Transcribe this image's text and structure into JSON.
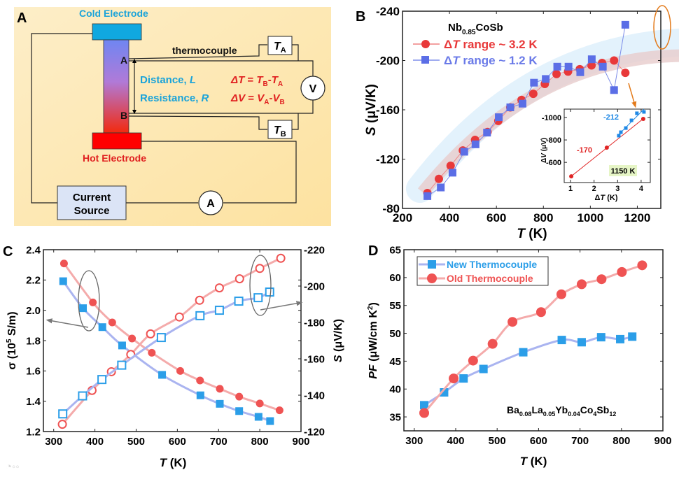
{
  "panel_labels": {
    "a": "A",
    "b": "B",
    "c": "C",
    "d": "D"
  },
  "diagram": {
    "cold_electrode": "Cold Electrode",
    "hot_electrode": "Hot Electrode",
    "thermocouple": "thermocouple",
    "point_a": "A",
    "point_b": "B",
    "distance": "Distance, ",
    "distance_var": "L",
    "resistance": "Resistance, ",
    "resistance_var": "R",
    "delta_t_eq": {
      "lhs": "ΔT",
      "eq": " = ",
      "t": "T",
      "sub_b": "B",
      "minus": "-",
      "sub_a": "A"
    },
    "delta_v_eq": {
      "lhs": "ΔV",
      "eq": " = ",
      "v": "V",
      "sub_a": "A",
      "minus": "-",
      "sub_b": "B"
    },
    "ta": {
      "t": "T",
      "sub": "A"
    },
    "tb": {
      "t": "T",
      "sub": "B"
    },
    "voltmeter": "V",
    "ammeter": "A",
    "current_source": {
      "line1": "Current",
      "line2": "Source"
    },
    "colors": {
      "background": "#fde9b8",
      "cold": "#10a8e0",
      "hot": "#ee1111",
      "label_blue": "#1aa3d9",
      "label_red": "#e02020"
    }
  },
  "chart_data": [
    {
      "id": "B",
      "type": "line",
      "title": {
        "base": "Nb",
        "sub": "0.85",
        "rest": "CoSb"
      },
      "xlabel": {
        "var": "T",
        "unit": " (K)"
      },
      "ylabel": {
        "var": "S",
        "unit": " (μV/K)"
      },
      "xlim": [
        200,
        1300
      ],
      "ylim": [
        -240,
        -80
      ],
      "xticks": [
        200,
        400,
        600,
        800,
        1000,
        1200
      ],
      "yticks": [
        -240,
        -200,
        -160,
        -120,
        -80
      ],
      "legend_placement": "top-left",
      "series": [
        {
          "name": "ΔT range ~ 3.2 K",
          "legend": {
            "delta": "Δ",
            "t": "T",
            "rest": " range ~ 3.2 K"
          },
          "marker": "circle",
          "color": "#e8393a",
          "x": [
            306,
            355,
            405,
            457,
            509,
            562,
            608,
            659,
            707,
            757,
            806,
            856,
            905,
            955,
            1005,
            1050,
            1101,
            1149
          ],
          "y": [
            -92.5,
            -104,
            -114.6,
            -127,
            -135.6,
            -142,
            -151,
            -162,
            -168,
            -173,
            -181,
            -189,
            -191,
            -193,
            -196,
            -198,
            -200,
            -190
          ]
        },
        {
          "name": "ΔT range ~ 1.2 K",
          "legend": {
            "delta": "Δ",
            "t": "T",
            "rest": " range ~ 1.2 K"
          },
          "marker": "square",
          "color": "#5b6ee6",
          "x": [
            306,
            363,
            413,
            463,
            511,
            560,
            610,
            659,
            711,
            760,
            810,
            859,
            907,
            957,
            1006,
            1053,
            1101,
            1149
          ],
          "y": [
            -90,
            -97,
            -109,
            -126,
            -132,
            -141.5,
            -154,
            -162,
            -165,
            -182,
            -185,
            -195,
            -195,
            -190.5,
            -201,
            -195,
            -176,
            -229
          ]
        }
      ],
      "inset": {
        "type": "scatter",
        "xlabel": {
          "delta": "Δ",
          "var": "T",
          "unit": " (K)"
        },
        "ylabel": {
          "delta": "Δ",
          "var": "V",
          "unit": " (μV)"
        },
        "xlim": [
          0.73,
          4.39
        ],
        "ylim": [
          -1075,
          -420
        ],
        "xticks": [
          1,
          2,
          3,
          4
        ],
        "yticks": [
          -1000,
          -800,
          -600
        ],
        "annotation": "1150 K",
        "series": [
          {
            "name": "ΔT range ~ 3.2 K",
            "label": "-170",
            "marker": "circle",
            "color": "#e02424",
            "x": [
              1.03,
              2.54,
              4.09
            ],
            "y": [
              -475,
              -731,
              -988
            ]
          },
          {
            "name": "ΔT range ~ 1.2 K",
            "label": "-212",
            "marker": "square",
            "color": "#1e88e5",
            "x": [
              3.05,
              3.14,
              3.35,
              3.59,
              3.82,
              4.12
            ],
            "y": [
              -838,
              -869,
              -906,
              -975,
              -1038,
              -1050
            ]
          }
        ]
      }
    },
    {
      "id": "C",
      "type": "line",
      "xlabel": {
        "var": "T",
        "unit": " (K)"
      },
      "ylabel_left": {
        "var": "σ",
        "unit": " (10",
        "sup": "5",
        "unit2": " S/m)"
      },
      "ylabel_right": {
        "var": "S",
        "unit": " (μV/K)"
      },
      "xlim": [
        275,
        900
      ],
      "ylim_left": [
        2.4,
        1.2
      ],
      "ylim_right": [
        -220,
        -120
      ],
      "xticks": [
        300,
        400,
        500,
        600,
        700,
        800,
        900
      ],
      "yticks_left": [
        "2.4",
        "2.2",
        "2.0",
        "1.8",
        "1.6",
        "1.4",
        "1.2"
      ],
      "yticks_right": [
        -220,
        -200,
        -180,
        -160,
        -140,
        -120
      ],
      "series": [
        {
          "name": "σ old thermocouple",
          "axis": "left",
          "marker": "circle",
          "filled": true,
          "color": "#ef5353",
          "line": "#f4abab",
          "x": [
            325,
            395,
            442,
            490,
            538,
            607,
            655,
            703,
            750,
            800,
            848
          ],
          "y": [
            2.309,
            2.052,
            1.92,
            1.814,
            1.72,
            1.6,
            1.537,
            1.482,
            1.43,
            1.385,
            1.34
          ]
        },
        {
          "name": "σ new thermocouple",
          "axis": "left",
          "marker": "square",
          "filled": true,
          "color": "#2b9ee8",
          "line": "#aab4f0",
          "x": [
            323,
            371,
            418,
            466,
            563,
            656,
            703,
            750,
            797,
            825
          ],
          "y": [
            2.192,
            2.014,
            1.889,
            1.768,
            1.574,
            1.439,
            1.383,
            1.335,
            1.297,
            1.269
          ]
        },
        {
          "name": "S old thermocouple",
          "axis": "right",
          "marker": "circle",
          "filled": false,
          "color": "#ef5353",
          "line": "#f4abab",
          "x": [
            321,
            393,
            440,
            487,
            535,
            605,
            654,
            702,
            751,
            800,
            851
          ],
          "y": [
            -124,
            -142.6,
            -152.9,
            -162.4,
            -173.7,
            -183,
            -192.2,
            -199,
            -204,
            -209.7,
            -215.3
          ]
        },
        {
          "name": "S new thermocouple",
          "axis": "right",
          "marker": "square",
          "filled": false,
          "color": "#2b9ee8",
          "line": "#aab4f0",
          "x": [
            322,
            370,
            417,
            465,
            561,
            655,
            702,
            749,
            796,
            824
          ],
          "y": [
            -129.7,
            -139.6,
            -148.6,
            -156.5,
            -171.7,
            -183.7,
            -186.7,
            -191.7,
            -193.6,
            -196.7
          ]
        }
      ]
    },
    {
      "id": "D",
      "type": "line",
      "xlabel": {
        "var": "T",
        "unit": " (K)"
      },
      "ylabel": {
        "var": "PF",
        "unit": " (μW/cm K",
        "sup": "2",
        "unit2": ")"
      },
      "xlim": [
        275,
        900
      ],
      "ylim": [
        65,
        32.5
      ],
      "xticks": [
        300,
        400,
        500,
        600,
        700,
        800,
        900
      ],
      "yticks": [
        65,
        60,
        55,
        50,
        45,
        40,
        35
      ],
      "legend_placement": "top-left",
      "annotation": [
        {
          "t": "Ba"
        },
        {
          "s": "0.08"
        },
        {
          "t": "La"
        },
        {
          "s": "0.05"
        },
        {
          "t": "Yb"
        },
        {
          "s": "0.04"
        },
        {
          "t": "Co"
        },
        {
          "s": "4"
        },
        {
          "t": "Sb"
        },
        {
          "s": "12"
        }
      ],
      "series": [
        {
          "name": "New Thermocouple",
          "marker": "square",
          "color": "#2b9ee8",
          "line": "#aab4f0",
          "x": [
            324,
            372,
            419,
            467,
            563,
            656,
            704,
            751,
            797,
            826
          ],
          "y": [
            37.1,
            39.4,
            41.9,
            43.6,
            46.6,
            48.8,
            48.4,
            49.3,
            48.95,
            49.4
          ]
        },
        {
          "name": "Old Thermocouple",
          "marker": "circle",
          "color": "#ef5353",
          "line": "#f4abab",
          "x": [
            324,
            395,
            442,
            489,
            537,
            606,
            655,
            704,
            752,
            801,
            850
          ],
          "y": [
            35.7,
            41.9,
            45.1,
            48.1,
            52.05,
            53.8,
            57.0,
            58.8,
            59.7,
            61.0,
            62.2
          ]
        }
      ]
    }
  ]
}
